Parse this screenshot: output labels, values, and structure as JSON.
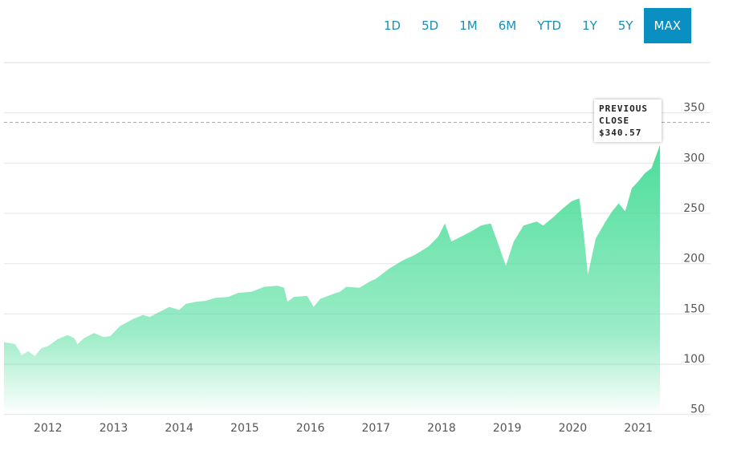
{
  "range_buttons": [
    "1D",
    "5D",
    "1M",
    "6M",
    "YTD",
    "1Y",
    "5Y",
    "MAX"
  ],
  "active_range": "MAX",
  "chart_data": {
    "type": "area",
    "color": "#4cdd9a",
    "x": [
      2011.33,
      2011.5,
      2011.6,
      2011.7,
      2011.8,
      2011.9,
      2012.0,
      2012.15,
      2012.3,
      2012.4,
      2012.45,
      2012.55,
      2012.7,
      2012.85,
      2012.95,
      2013.1,
      2013.3,
      2013.45,
      2013.55,
      2013.7,
      2013.85,
      2014.0,
      2014.1,
      2014.25,
      2014.4,
      2014.55,
      2014.75,
      2014.9,
      2015.1,
      2015.3,
      2015.5,
      2015.6,
      2015.65,
      2015.75,
      2015.95,
      2016.05,
      2016.15,
      2016.35,
      2016.45,
      2016.55,
      2016.75,
      2016.9,
      2017.0,
      2017.2,
      2017.4,
      2017.6,
      2017.8,
      2017.95,
      2018.05,
      2018.15,
      2018.3,
      2018.45,
      2018.6,
      2018.75,
      2018.85,
      2018.98,
      2019.1,
      2019.25,
      2019.45,
      2019.55,
      2019.7,
      2019.85,
      2019.98,
      2020.1,
      2020.17,
      2020.23,
      2020.35,
      2020.5,
      2020.6,
      2020.7,
      2020.8,
      2020.9,
      2021.0,
      2021.1,
      2021.2,
      2021.33
    ],
    "values": [
      122,
      120,
      109,
      113,
      108,
      116,
      118,
      125,
      129,
      126,
      120,
      126,
      131,
      127,
      128,
      138,
      145,
      149,
      147,
      152,
      157,
      154,
      160,
      162,
      163,
      166,
      167,
      171,
      172,
      177,
      178,
      176,
      162,
      167,
      168,
      157,
      165,
      170,
      172,
      177,
      176,
      182,
      185,
      195,
      203,
      209,
      217,
      227,
      240,
      222,
      227,
      232,
      238,
      240,
      222,
      198,
      222,
      238,
      242,
      238,
      246,
      255,
      262,
      265,
      228,
      189,
      225,
      242,
      252,
      260,
      252,
      275,
      282,
      290,
      295,
      318
    ],
    "xlim": [
      2011.33,
      2022.1
    ],
    "xticks": [
      2012,
      2013,
      2014,
      2015,
      2016,
      2017,
      2018,
      2019,
      2020,
      2021
    ],
    "ylim": [
      49,
      400
    ],
    "yticks": [
      50,
      100,
      150,
      200,
      250,
      300,
      350
    ],
    "grid": true,
    "previous_close": {
      "label": "PREVIOUS CLOSE",
      "value": 340.57,
      "value_label": "$340.57"
    }
  }
}
